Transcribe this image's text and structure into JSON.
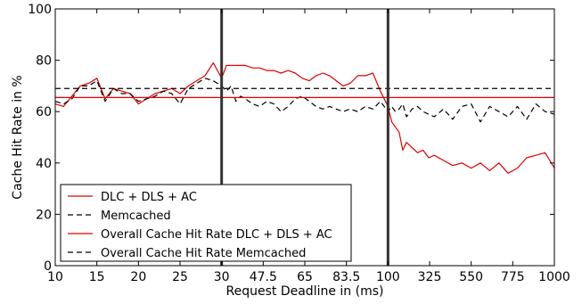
{
  "chart_data": {
    "type": "line",
    "xlabel": "Request Deadline in (ms)",
    "ylabel": "Cache Hit Rate in %",
    "ylim": [
      0,
      100
    ],
    "yticks": [
      0,
      20,
      40,
      60,
      80,
      100
    ],
    "xscale": "piecewise: 10-30 step 5, 30-100 step 17.5, 100-1000 step 225",
    "xticks": [
      {
        "value": 10,
        "label": "10"
      },
      {
        "value": 15,
        "label": "15"
      },
      {
        "value": 20,
        "label": "20"
      },
      {
        "value": 25,
        "label": "25"
      },
      {
        "value": 30,
        "label": "30"
      },
      {
        "value": 47.5,
        "label": "47.5"
      },
      {
        "value": 65,
        "label": "65"
      },
      {
        "value": 83.5,
        "label": "83.5"
      },
      {
        "value": 100,
        "label": "100"
      },
      {
        "value": 325,
        "label": "325"
      },
      {
        "value": 550,
        "label": "550"
      },
      {
        "value": 775,
        "label": "775"
      },
      {
        "value": 1000,
        "label": "1000"
      }
    ],
    "segment_boundaries": [
      30,
      100
    ],
    "legend_position": "lower-left",
    "series": [
      {
        "name": "DLC + DLS + AC",
        "color": "#e00000",
        "style": "solid",
        "x": [
          10,
          11,
          12,
          13,
          14,
          15,
          16,
          17,
          18,
          19,
          20,
          21,
          22,
          23,
          24,
          25,
          26,
          27,
          28,
          29,
          30,
          32,
          34,
          36,
          38,
          40,
          43,
          46,
          49,
          52,
          55,
          58,
          61,
          64,
          67,
          70,
          73,
          76,
          79,
          82,
          85,
          88,
          91,
          94,
          97,
          100,
          120,
          140,
          160,
          180,
          200,
          230,
          260,
          290,
          320,
          350,
          400,
          450,
          500,
          550,
          600,
          650,
          700,
          750,
          800,
          850,
          900,
          950,
          1000
        ],
        "y": [
          63,
          62,
          66,
          70,
          71,
          73,
          65,
          69,
          68,
          67,
          63,
          65,
          67,
          68,
          69,
          67,
          70,
          72,
          74,
          79,
          73,
          78,
          78,
          78,
          78,
          78,
          77,
          77,
          76,
          76,
          75,
          76,
          75,
          73,
          72,
          74,
          75,
          74,
          72,
          70,
          71,
          74,
          74,
          75,
          68,
          62,
          56,
          54,
          52,
          45,
          48,
          46,
          44,
          45,
          42,
          43,
          41,
          39,
          40,
          38,
          40,
          37,
          40,
          36,
          38,
          42,
          43,
          44,
          38
        ]
      },
      {
        "name": "Memcached",
        "color": "#000000",
        "style": "dashed",
        "x": [
          10,
          11,
          12,
          13,
          14,
          15,
          16,
          17,
          18,
          19,
          20,
          21,
          22,
          23,
          24,
          25,
          26,
          27,
          28,
          29,
          30,
          32,
          34,
          36,
          38,
          40,
          43,
          46,
          49,
          52,
          55,
          58,
          61,
          64,
          67,
          70,
          73,
          76,
          79,
          82,
          85,
          88,
          91,
          94,
          97,
          100,
          120,
          140,
          160,
          180,
          200,
          230,
          260,
          290,
          320,
          350,
          400,
          450,
          500,
          550,
          600,
          650,
          700,
          750,
          800,
          850,
          900,
          950,
          1000
        ],
        "y": [
          64,
          63,
          65,
          70,
          70,
          72,
          64,
          69,
          67,
          67,
          64,
          65,
          66,
          68,
          67,
          63,
          69,
          71,
          73,
          72,
          70,
          68,
          70,
          64,
          66,
          65,
          63,
          62,
          64,
          63,
          60,
          62,
          65,
          66,
          64,
          62,
          61,
          62,
          61,
          60,
          61,
          60,
          62,
          61,
          64,
          60,
          62,
          60,
          61,
          63,
          58,
          61,
          62,
          60,
          59,
          58,
          61,
          57,
          62,
          63,
          56,
          62,
          60,
          58,
          62,
          57,
          63,
          60,
          59
        ]
      },
      {
        "name": "Overall Cache Hit Rate DLC + DLS + AC",
        "color": "#e00000",
        "style": "solid",
        "constant": 65.5
      },
      {
        "name": "Overall Cache Hit Rate Memcached",
        "color": "#000000",
        "style": "dashed",
        "constant": 69
      }
    ]
  }
}
